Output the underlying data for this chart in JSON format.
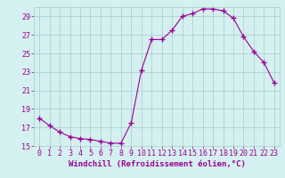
{
  "x": [
    0,
    1,
    2,
    3,
    4,
    5,
    6,
    7,
    8,
    9,
    10,
    11,
    12,
    13,
    14,
    15,
    16,
    17,
    18,
    19,
    20,
    21,
    22,
    23
  ],
  "y": [
    18.0,
    17.2,
    16.5,
    16.0,
    15.8,
    15.7,
    15.5,
    15.3,
    15.3,
    17.5,
    23.2,
    26.5,
    26.5,
    27.5,
    29.0,
    29.3,
    29.8,
    29.8,
    29.6,
    28.8,
    26.8,
    25.2,
    24.0,
    21.8
  ],
  "ylim": [
    15,
    30
  ],
  "xlim": [
    -0.5,
    23.5
  ],
  "yticks": [
    15,
    17,
    19,
    21,
    23,
    25,
    27,
    29
  ],
  "xticks": [
    0,
    1,
    2,
    3,
    4,
    5,
    6,
    7,
    8,
    9,
    10,
    11,
    12,
    13,
    14,
    15,
    16,
    17,
    18,
    19,
    20,
    21,
    22,
    23
  ],
  "xlabel": "Windchill (Refroidissement éolien,°C)",
  "line_color": "#990099",
  "marker": "+",
  "marker_size": 4,
  "background_color": "#d4f0f0",
  "grid_color": "#aacccc",
  "tick_color": "#990099",
  "tick_fontsize": 6,
  "xlabel_fontsize": 6.5
}
